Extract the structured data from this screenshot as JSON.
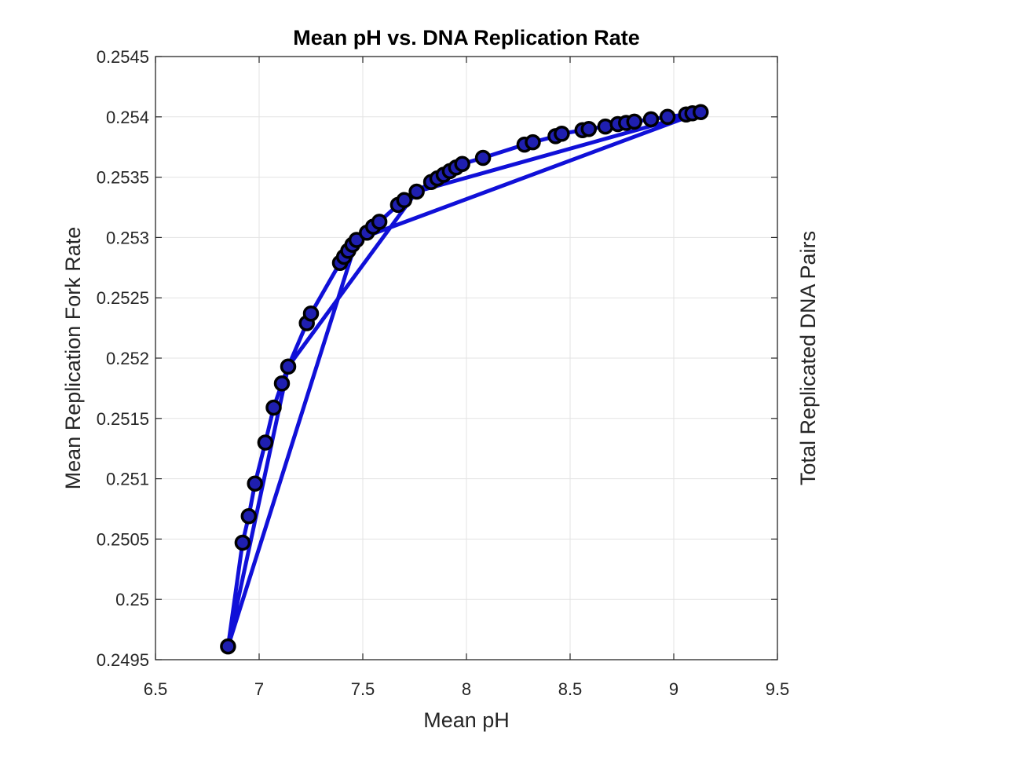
{
  "chart_data": {
    "type": "line",
    "title": "Mean pH vs. DNA Replication Rate",
    "xlabel": "Mean pH",
    "ylabel": "Mean Replication Fork Rate",
    "ylabel_right": "Total Replicated DNA Pairs",
    "xlim": [
      6.5,
      9.5
    ],
    "ylim": [
      0.2495,
      0.2545
    ],
    "x_ticks": [
      6.5,
      7,
      7.5,
      8,
      8.5,
      9,
      9.5
    ],
    "x_tick_labels": [
      "6.5",
      "7",
      "7.5",
      "8",
      "8.5",
      "9",
      "9.5"
    ],
    "y_ticks": [
      0.2495,
      0.25,
      0.2505,
      0.251,
      0.2515,
      0.252,
      0.2525,
      0.253,
      0.2535,
      0.254,
      0.2545
    ],
    "y_tick_labels": [
      "0.2495",
      "0.25",
      "0.2505",
      "0.251",
      "0.2515",
      "0.252",
      "0.2525",
      "0.253",
      "0.2535",
      "0.254",
      "0.2545"
    ],
    "grid": true,
    "colors": {
      "line": "#1010d8",
      "marker_fill": "#1f1fb0",
      "marker_edge": "#000000",
      "grid": "#e3e3e3",
      "axes": "#262626"
    },
    "series": [
      {
        "x": [
          6.85,
          6.92,
          6.95,
          6.98,
          7.03,
          7.07,
          7.11,
          7.14,
          7.23,
          7.25,
          7.39,
          7.41,
          7.43,
          7.45,
          7.47,
          7.52,
          7.55,
          7.58,
          7.67,
          7.7,
          7.76,
          7.83,
          7.86,
          7.89,
          7.92,
          7.95,
          7.98,
          8.08,
          8.28,
          8.32,
          8.43,
          8.46,
          8.56,
          8.59,
          8.67,
          8.73,
          8.77,
          8.81,
          8.89,
          8.97,
          9.06,
          9.09,
          9.13
        ],
        "y": [
          0.24961,
          0.25047,
          0.25069,
          0.25096,
          0.2513,
          0.25159,
          0.25179,
          0.25193,
          0.25229,
          0.25237,
          0.25279,
          0.25284,
          0.25289,
          0.25294,
          0.25298,
          0.25304,
          0.25309,
          0.25313,
          0.25327,
          0.25331,
          0.25338,
          0.25346,
          0.25349,
          0.25352,
          0.25355,
          0.25358,
          0.25361,
          0.25366,
          0.25377,
          0.25379,
          0.25384,
          0.25386,
          0.25389,
          0.2539,
          0.25392,
          0.25394,
          0.25395,
          0.25396,
          0.25398,
          0.254,
          0.25402,
          0.25403,
          0.25404
        ],
        "order": [
          0,
          1,
          2,
          3,
          4,
          5,
          6,
          7,
          8,
          9,
          10,
          11,
          12,
          13,
          14,
          15,
          16,
          17,
          18,
          19,
          20,
          21,
          22,
          23,
          24,
          25,
          26,
          27,
          28,
          29,
          30,
          31,
          32,
          33,
          34,
          35,
          36,
          37,
          38,
          39,
          40,
          41,
          42,
          14,
          0,
          7,
          20,
          42
        ]
      }
    ]
  }
}
